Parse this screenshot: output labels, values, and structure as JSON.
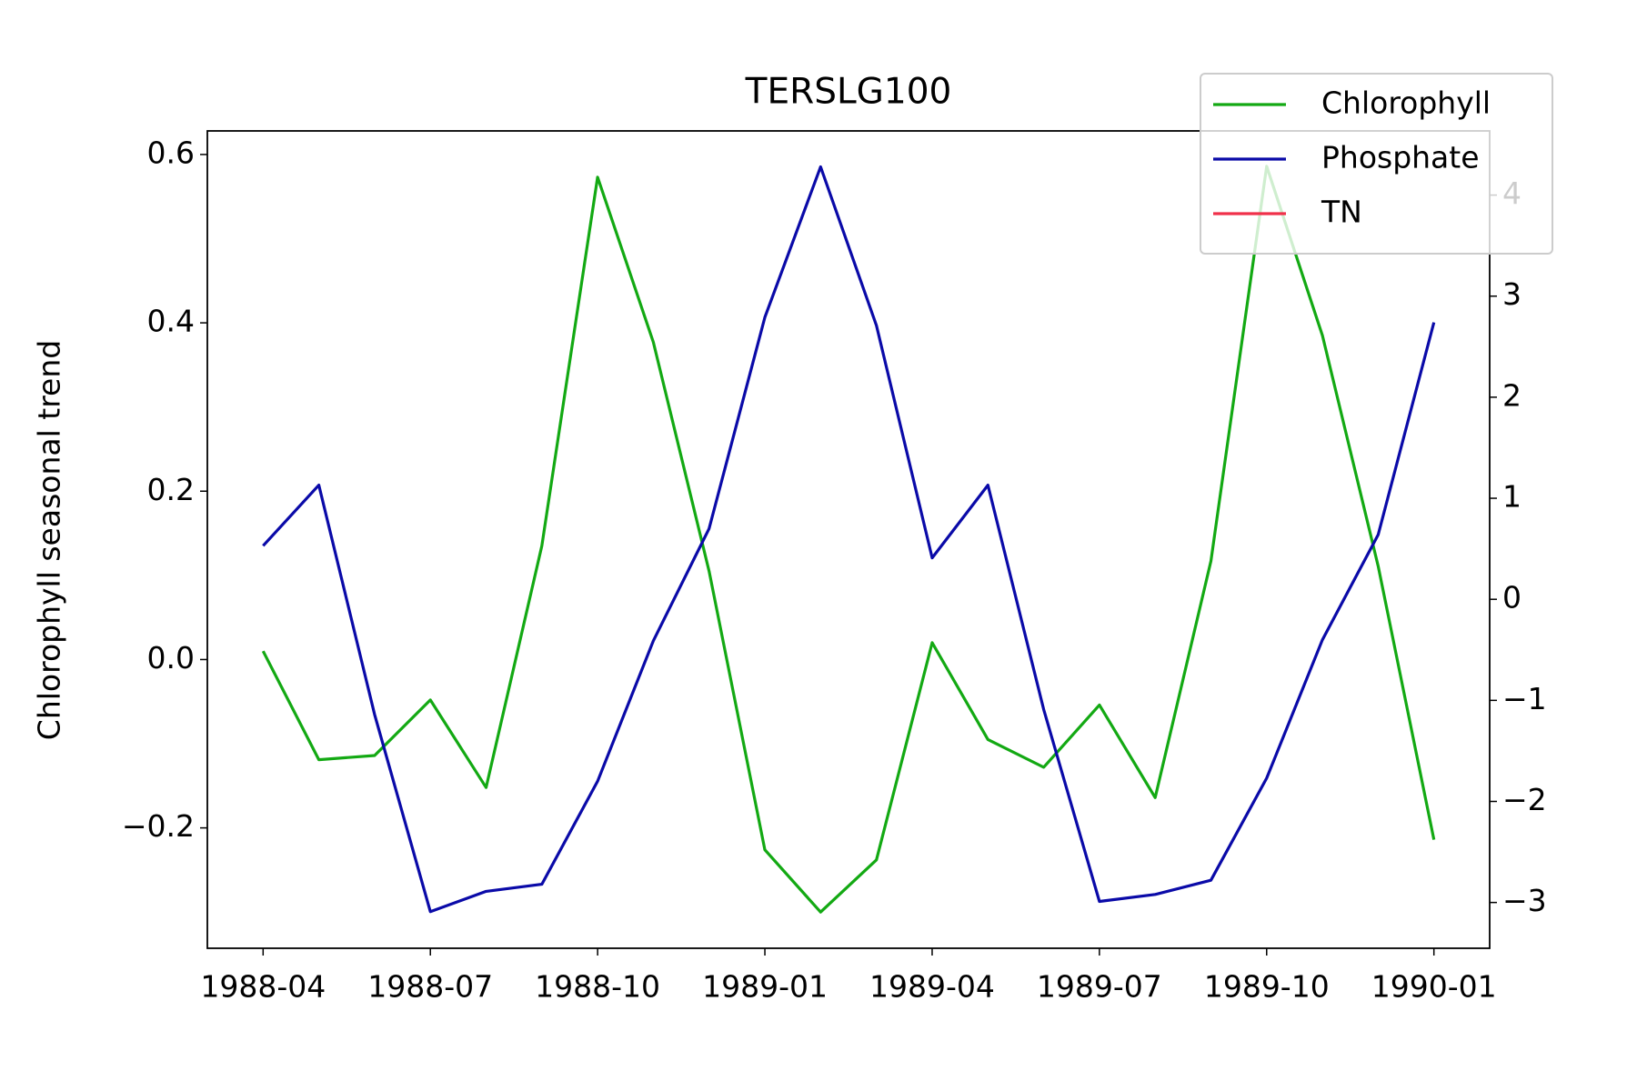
{
  "chart_data": {
    "type": "line",
    "title": "TERSLG100",
    "ylabel": "Chlorophyll seasonal trend",
    "x": [
      "1988-04",
      "1988-05",
      "1988-06",
      "1988-07",
      "1988-08",
      "1988-09",
      "1988-10",
      "1988-11",
      "1988-12",
      "1989-01",
      "1989-02",
      "1989-03",
      "1989-04",
      "1989-05",
      "1989-06",
      "1989-07",
      "1989-08",
      "1989-09",
      "1989-10",
      "1989-11",
      "1989-12",
      "1990-01"
    ],
    "xlim": [
      "1988-03",
      "1990-02"
    ],
    "xticks": [
      "1988-04",
      "1988-07",
      "1988-10",
      "1989-01",
      "1989-04",
      "1989-07",
      "1989-10",
      "1990-01"
    ],
    "ylim": [
      -0.343,
      0.628
    ],
    "yticks": [
      {
        "value": -0.2,
        "label": "−0.2"
      },
      {
        "value": 0,
        "label": "0.0"
      },
      0.2,
      0.4,
      0.6
    ],
    "y2lim": [
      -3.453,
      4.635
    ],
    "y2ticks": [
      {
        "value": -3,
        "label": "−3"
      },
      {
        "value": -2,
        "label": "−2"
      },
      {
        "value": -1,
        "label": "−1"
      },
      0,
      1,
      2,
      3,
      4
    ],
    "legend": "upper right",
    "series": [
      {
        "name": "Chlorophyll",
        "color": "#13a913",
        "values": [
          0.01,
          -0.119,
          -0.114,
          -0.048,
          -0.152,
          0.135,
          0.573,
          0.377,
          0.105,
          -0.226,
          -0.3,
          -0.238,
          0.02,
          -0.095,
          -0.128,
          -0.054,
          -0.164,
          0.117,
          0.586,
          0.385,
          0.111,
          -0.214
        ]
      },
      {
        "name": "Phosphate",
        "color": "#0a0aa8",
        "axis": "y2",
        "values": [
          0.53,
          1.13,
          -1.14,
          -3.09,
          -2.89,
          -2.82,
          -1.8,
          -0.41,
          0.7,
          2.79,
          4.28,
          2.71,
          0.41,
          1.13,
          -1.09,
          -2.99,
          -2.92,
          -2.78,
          -1.77,
          -0.4,
          0.64,
          2.74
        ]
      },
      {
        "name": "TN",
        "color": "#f0304a",
        "values": [
          null,
          null,
          null,
          null,
          null,
          null,
          null,
          null,
          null,
          null,
          null,
          null,
          null,
          null,
          null,
          null,
          null,
          null,
          null,
          null,
          null,
          null
        ]
      }
    ]
  }
}
